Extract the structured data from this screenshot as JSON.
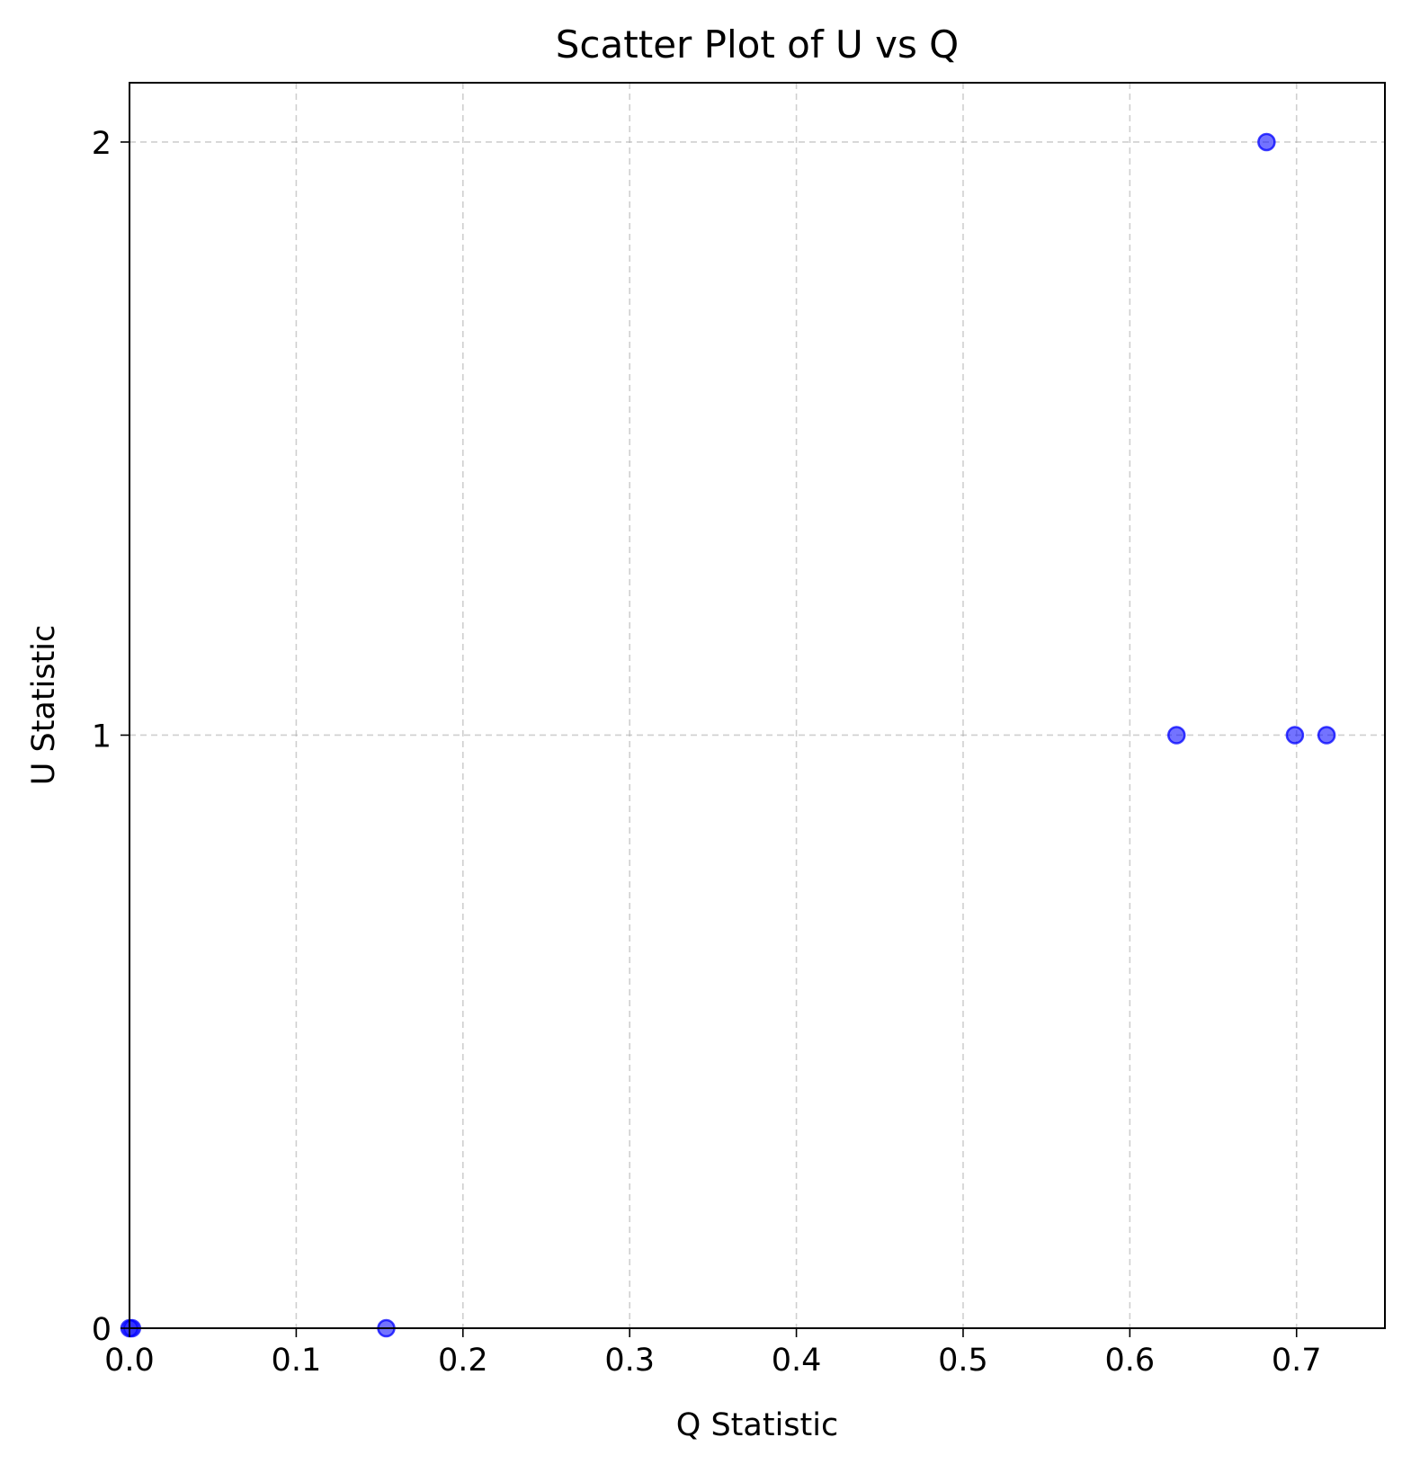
{
  "chart_data": {
    "type": "scatter",
    "title": "Scatter Plot of U vs Q",
    "xlabel": "Q Statistic",
    "ylabel": "U Statistic",
    "xlim": [
      0.0,
      0.753
    ],
    "ylim": [
      0,
      2.1
    ],
    "xticks": [
      0.0,
      0.1,
      0.2,
      0.3,
      0.4,
      0.5,
      0.6,
      0.7
    ],
    "xtick_labels": [
      "0.0",
      "0.1",
      "0.2",
      "0.3",
      "0.4",
      "0.5",
      "0.6",
      "0.7"
    ],
    "yticks": [
      0,
      1,
      2
    ],
    "ytick_labels": [
      "0",
      "1",
      "2"
    ],
    "grid": true,
    "marker_color": "#0000ff",
    "points": [
      {
        "x": 0.0,
        "y": 0
      },
      {
        "x": 0.0015,
        "y": 0
      },
      {
        "x": 0.154,
        "y": 0
      },
      {
        "x": 0.628,
        "y": 1
      },
      {
        "x": 0.699,
        "y": 1
      },
      {
        "x": 0.718,
        "y": 1
      },
      {
        "x": 0.682,
        "y": 2
      }
    ]
  }
}
